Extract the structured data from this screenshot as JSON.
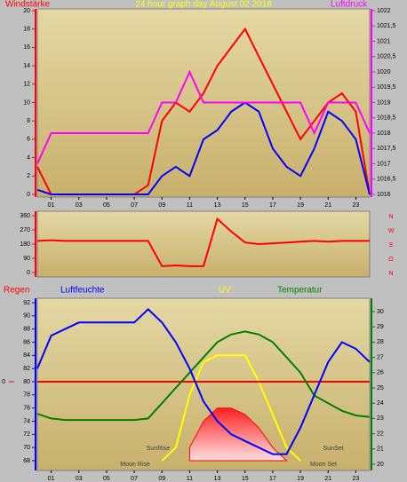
{
  "chart_data": [
    {
      "type": "line",
      "title": "24 hour graph day   August 02 2018",
      "left_label": "Windstärke",
      "right_label": "Luftdruck",
      "x": [
        0,
        1,
        2,
        3,
        4,
        5,
        6,
        7,
        8,
        9,
        10,
        11,
        12,
        13,
        14,
        15,
        16,
        17,
        18,
        19,
        20,
        21,
        22,
        23,
        24
      ],
      "xlim": [
        0,
        24
      ],
      "xticks": [
        {
          "value": 1,
          "label": "01"
        },
        {
          "value": 3,
          "label": "03"
        },
        {
          "value": 5,
          "label": "05"
        },
        {
          "value": 7,
          "label": "07"
        },
        {
          "value": 9,
          "label": "09"
        },
        {
          "value": 11,
          "label": "11"
        },
        {
          "value": 13,
          "label": "13"
        },
        {
          "value": 15,
          "label": "15"
        },
        {
          "value": 17,
          "label": "17"
        },
        {
          "value": 19,
          "label": "19"
        },
        {
          "value": 21,
          "label": "21"
        },
        {
          "value": 23,
          "label": "23"
        }
      ],
      "ylim": [
        0,
        20
      ],
      "yticks": [
        0,
        2,
        4,
        6,
        8,
        10,
        12,
        14,
        16,
        18,
        20
      ],
      "y2lim": [
        1016,
        1022
      ],
      "y2ticks": [
        1016,
        {
          "value": 1016.5,
          "label": "1016,5"
        },
        1017,
        {
          "value": 1017.5,
          "label": "1017,5"
        },
        1018,
        {
          "value": 1018.5,
          "label": "1018,5"
        },
        1019,
        {
          "value": 1019.5,
          "label": "1019,5"
        },
        1020,
        {
          "value": 1020.5,
          "label": "1020,5"
        },
        1021,
        {
          "value": 1021.5,
          "label": "1021,5"
        },
        1022
      ],
      "series": [
        {
          "name": "Windstärke",
          "color": "#ff0000",
          "values": [
            3,
            0,
            0,
            0,
            0,
            0,
            0,
            0,
            1,
            8,
            10,
            9,
            11,
            14,
            16,
            18,
            15,
            12,
            9,
            6,
            8,
            10,
            11,
            9,
            0
          ]
        },
        {
          "color": "#0000ff",
          "values": [
            0.5,
            0,
            0,
            0,
            0,
            0,
            0,
            0,
            0,
            2,
            3,
            2,
            6,
            7,
            9,
            10,
            9,
            5,
            3,
            2,
            5,
            9,
            8,
            6,
            0
          ]
        },
        {
          "name": "Luftdruck",
          "color": "#ff00ff",
          "axis": "y2",
          "values": [
            1017,
            1018,
            1018,
            1018,
            1018,
            1018,
            1018,
            1018,
            1018,
            1019,
            1019,
            1020,
            1019,
            1019,
            1019,
            1019,
            1019,
            1019,
            1019,
            1019,
            1018,
            1019,
            1019,
            1019,
            1018
          ]
        }
      ]
    },
    {
      "type": "line",
      "direction_labels": [
        "N",
        "W",
        "S",
        "O",
        "N"
      ],
      "x": [
        0,
        1,
        2,
        3,
        4,
        5,
        6,
        7,
        8,
        9,
        10,
        11,
        12,
        13,
        14,
        15,
        16,
        17,
        18,
        19,
        20,
        21,
        22,
        23,
        24
      ],
      "xlim": [
        0,
        24
      ],
      "ylim": [
        0,
        360
      ],
      "yticks": [
        0,
        90,
        180,
        270,
        360
      ],
      "series": [
        {
          "color": "#ff0000",
          "values": [
            200,
            205,
            200,
            200,
            200,
            200,
            200,
            200,
            200,
            40,
            45,
            40,
            40,
            340,
            260,
            190,
            180,
            185,
            190,
            195,
            200,
            195,
            200,
            200,
            200
          ]
        }
      ]
    },
    {
      "type": "line",
      "labels": [
        "Regen",
        "Luftfeuchte",
        "UV",
        "Temperatur"
      ],
      "annotations": [
        "SunRise",
        "Moon Rise",
        "SunSet",
        "Moon Set"
      ],
      "x": [
        0,
        1,
        2,
        3,
        4,
        5,
        6,
        7,
        8,
        9,
        10,
        11,
        12,
        13,
        14,
        15,
        16,
        17,
        18,
        19,
        20,
        21,
        22,
        23,
        24
      ],
      "xlim": [
        0,
        24
      ],
      "xticks": [
        {
          "value": 1,
          "label": "01"
        },
        {
          "value": 3,
          "label": "03"
        },
        {
          "value": 5,
          "label": "05"
        },
        {
          "value": 7,
          "label": "07"
        },
        {
          "value": 9,
          "label": "09"
        },
        {
          "value": 11,
          "label": "11"
        },
        {
          "value": 13,
          "label": "13"
        },
        {
          "value": 15,
          "label": "15"
        },
        {
          "value": 17,
          "label": "17"
        },
        {
          "value": 19,
          "label": "19"
        },
        {
          "value": 21,
          "label": "21"
        },
        {
          "value": 23,
          "label": "23"
        }
      ],
      "ylim": [
        68,
        92
      ],
      "yticks": [
        68,
        70,
        72,
        74,
        76,
        78,
        80,
        82,
        84,
        86,
        88,
        90,
        92
      ],
      "y2lim": [
        20,
        30
      ],
      "y2ticks": [
        20,
        21,
        22,
        23,
        24,
        25,
        26,
        27,
        28,
        29,
        30
      ],
      "y3lim": [
        -4,
        4
      ],
      "y3ticks": [
        0
      ],
      "series": [
        {
          "color": "#ff0000",
          "fill": true,
          "values": [
            null,
            null,
            null,
            null,
            null,
            null,
            null,
            null,
            null,
            null,
            null,
            70,
            74,
            76,
            76,
            75,
            73,
            70,
            68,
            null,
            null,
            null,
            null,
            null,
            null
          ]
        },
        {
          "color": "#ffff00",
          "values": [
            null,
            null,
            null,
            null,
            null,
            null,
            null,
            null,
            null,
            68,
            70,
            78,
            83,
            84,
            84,
            84,
            80,
            75,
            70,
            68,
            null,
            null,
            null,
            null,
            null
          ]
        },
        {
          "color": "#ff0000",
          "axis": "y3",
          "values": [
            0,
            0,
            0,
            0,
            0,
            0,
            0,
            0,
            0,
            0,
            0,
            0,
            0,
            0,
            0,
            0,
            0,
            0,
            0,
            0,
            0,
            0,
            0,
            0,
            0
          ]
        },
        {
          "color": "#008000",
          "axis": "y2",
          "values": [
            23.3,
            23,
            22.9,
            22.9,
            22.9,
            22.9,
            22.9,
            22.9,
            23,
            24,
            25,
            26,
            27,
            28,
            28.5,
            28.7,
            28.5,
            28,
            27,
            26,
            24.5,
            24,
            23.5,
            23.2,
            23.1
          ]
        },
        {
          "color": "#0000ff",
          "values": [
            82,
            87,
            88,
            89,
            89,
            89,
            89,
            89,
            91,
            89,
            86,
            82,
            77,
            74,
            72,
            71,
            70,
            69,
            69,
            73,
            78,
            83,
            86,
            85,
            83
          ]
        }
      ]
    }
  ]
}
